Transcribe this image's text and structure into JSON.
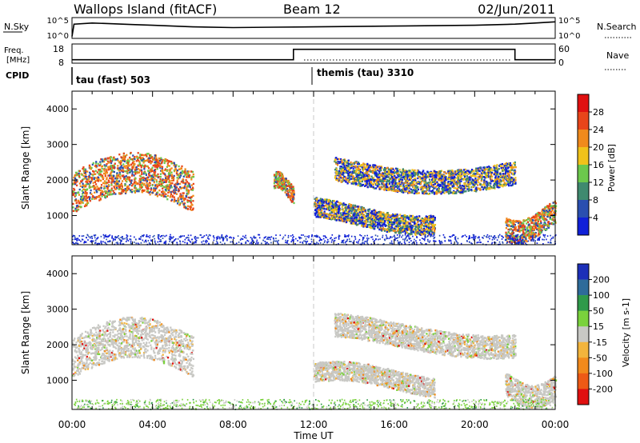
{
  "header": {
    "station": "Wallops Island (fitACF)",
    "beam": "Beam 12",
    "date": "02/Jun/2011"
  },
  "strips": {
    "nsky": {
      "label": "N.Sky",
      "tick_top": "10^5",
      "tick_bottom": "10^0"
    },
    "nsearch": {
      "label": "N.Search",
      "tick_top": "10^5",
      "tick_bottom": "10^0"
    },
    "freq": {
      "label_1": "Freq.",
      "label_2": "[MHz]",
      "tick_top": "18",
      "tick_bottom": "8"
    },
    "nave": {
      "label": "Nave",
      "tick_top": "60",
      "tick_bottom": "0"
    },
    "cpid": {
      "label": "CPID",
      "mode_1": "tau (fast) 503",
      "mode_2": "themis (tau) 3310"
    }
  },
  "axes": {
    "y_label": "Slant Range [km]",
    "y_ticks": [
      "1000",
      "2000",
      "3000",
      "4000"
    ],
    "x_label": "Time UT",
    "x_ticks": [
      "00:00",
      "04:00",
      "08:00",
      "12:00",
      "16:00",
      "20:00",
      "00:00"
    ]
  },
  "power_scale": {
    "label": "Power [dB]",
    "ticks": [
      "4",
      "8",
      "12",
      "16",
      "20",
      "24",
      "28"
    ],
    "colors": [
      "#1020d8",
      "#2a4fb0",
      "#3f8a6f",
      "#6cc84c",
      "#f0c21a",
      "#f08a1c",
      "#e8451a",
      "#e01010"
    ]
  },
  "velocity_scale": {
    "label": "Velocity [m s-1]",
    "ticks": [
      "200",
      "100",
      "50",
      "15",
      "-15",
      "-50",
      "-100",
      "-200"
    ],
    "colors": [
      "#1c2fb8",
      "#2e6b9a",
      "#2f9a4a",
      "#7ad23c",
      "#c8c8c4",
      "#f2b43c",
      "#f28a1c",
      "#ee5a16",
      "#e01010"
    ]
  },
  "chart_data": [
    {
      "type": "line",
      "name": "N.Sky",
      "x_hours": [
        0,
        0.1,
        1,
        2,
        3,
        4,
        5,
        6,
        8,
        10,
        12,
        14,
        16,
        18,
        20,
        22,
        23,
        24
      ],
      "values_log": [
        0.3,
        3.5,
        3.8,
        3.6,
        3.4,
        3.2,
        3.0,
        2.8,
        2.6,
        2.7,
        2.8,
        2.9,
        3.0,
        3.1,
        3.2,
        3.5,
        3.8,
        4.1
      ],
      "ylim_log": [
        0,
        5
      ]
    },
    {
      "type": "line",
      "name": "Freq.",
      "x_hours": [
        0,
        11,
        11,
        22,
        22,
        24
      ],
      "values": [
        9.5,
        9.5,
        15.4,
        15.4,
        9.5,
        9.5
      ],
      "ylim": [
        8,
        18
      ]
    },
    {
      "type": "heatmap",
      "name": "Power",
      "x_unit": "hours UT",
      "y_unit": "km",
      "xlim": [
        0,
        24
      ],
      "ylim": [
        180,
        4500
      ],
      "regions": [
        {
          "x": [
            0,
            6
          ],
          "y": [
            1000,
            2900
          ],
          "level": "high"
        },
        {
          "x": [
            10,
            11
          ],
          "y": [
            1500,
            2300
          ],
          "level": "high"
        },
        {
          "x": [
            12,
            18
          ],
          "y": [
            700,
            1600
          ],
          "level": "medium"
        },
        {
          "x": [
            13,
            22
          ],
          "y": [
            1900,
            3000
          ],
          "level": "medium"
        },
        {
          "x": [
            21.5,
            24
          ],
          "y": [
            500,
            1600
          ],
          "level": "high"
        }
      ]
    },
    {
      "type": "heatmap",
      "name": "Velocity",
      "x_unit": "hours UT",
      "y_unit": "km",
      "xlim": [
        0,
        24
      ],
      "ylim": [
        180,
        4500
      ],
      "regions": [
        {
          "x": [
            0,
            6
          ],
          "y": [
            1000,
            2900
          ],
          "level": "near-zero"
        },
        {
          "x": [
            12,
            18
          ],
          "y": [
            700,
            1600
          ],
          "level": "near-zero"
        },
        {
          "x": [
            13,
            22
          ],
          "y": [
            1900,
            3000
          ],
          "level": "near-zero"
        },
        {
          "x": [
            21.5,
            24
          ],
          "y": [
            500,
            1600
          ],
          "level": "near-zero"
        }
      ]
    }
  ]
}
